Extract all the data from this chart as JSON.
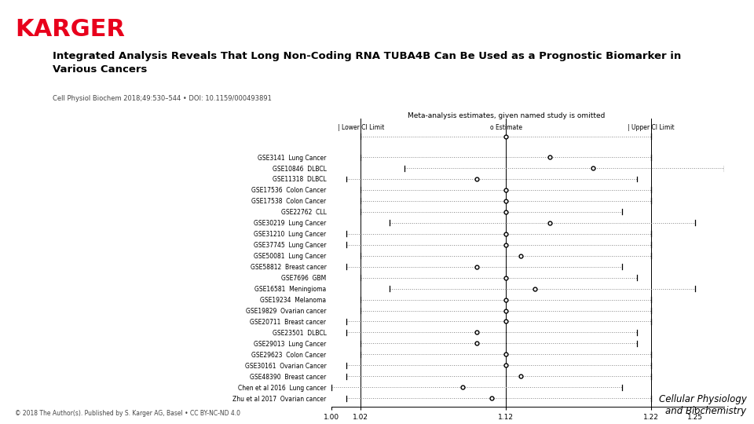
{
  "title": "Integrated Analysis Reveals That Long Non-Coding RNA TUBA4B Can Be Used as a Prognostic Biomarker in\nVarious Cancers",
  "subtitle": "Cell Physiol Biochem 2018;49:530–544 • DOI: 10.1159/000493891",
  "journal_label": "Cellular Physiology\nand Biochemistry",
  "karger_color": "#e8001c",
  "plot_title": "Meta-analysis estimates, given named study is omitted",
  "studies": [
    {
      "label": "GSE3141  Lung Cancer",
      "lower": 1.02,
      "est": 1.15,
      "upper": 1.22
    },
    {
      "label": "GSE10846  DLBCL",
      "lower": 1.05,
      "est": 1.18,
      "upper": 1.27
    },
    {
      "label": "GSE11318  DLBCL",
      "lower": 1.01,
      "est": 1.1,
      "upper": 1.21
    },
    {
      "label": "GSE17536  Colon Cancer",
      "lower": 1.02,
      "est": 1.12,
      "upper": 1.22
    },
    {
      "label": "GSE17538  Colon Cancer",
      "lower": 1.02,
      "est": 1.12,
      "upper": 1.22
    },
    {
      "label": "GSE22762  CLL",
      "lower": 1.02,
      "est": 1.12,
      "upper": 1.2
    },
    {
      "label": "GSE30219  Lung Cancer",
      "lower": 1.04,
      "est": 1.15,
      "upper": 1.25
    },
    {
      "label": "GSE31210  Lung Cancer",
      "lower": 1.01,
      "est": 1.12,
      "upper": 1.22
    },
    {
      "label": "GSE37745  Lung Cancer",
      "lower": 1.01,
      "est": 1.12,
      "upper": 1.22
    },
    {
      "label": "GSE50081  Lung Cancer",
      "lower": 1.02,
      "est": 1.13,
      "upper": 1.22
    },
    {
      "label": "GSE58812  Breast cancer",
      "lower": 1.01,
      "est": 1.1,
      "upper": 1.2
    },
    {
      "label": "GSE7696  GBM",
      "lower": 1.02,
      "est": 1.12,
      "upper": 1.21
    },
    {
      "label": "GSE16581  Meningioma",
      "lower": 1.04,
      "est": 1.14,
      "upper": 1.25
    },
    {
      "label": "GSE19234  Melanoma",
      "lower": 1.02,
      "est": 1.12,
      "upper": 1.22
    },
    {
      "label": "GSE19829  Ovarian cancer",
      "lower": 1.02,
      "est": 1.12,
      "upper": 1.22
    },
    {
      "label": "GSE20711  Breast cancer",
      "lower": 1.01,
      "est": 1.12,
      "upper": 1.22
    },
    {
      "label": "GSE23501  DLBCL",
      "lower": 1.01,
      "est": 1.1,
      "upper": 1.21
    },
    {
      "label": "GSE29013  Lung Cancer",
      "lower": 1.02,
      "est": 1.1,
      "upper": 1.21
    },
    {
      "label": "GSE29623  Colon Cancer",
      "lower": 1.02,
      "est": 1.12,
      "upper": 1.22
    },
    {
      "label": "GSE30161  Ovarian Cancer",
      "lower": 1.01,
      "est": 1.12,
      "upper": 1.22
    },
    {
      "label": "GSE48390  Breast cancer",
      "lower": 1.01,
      "est": 1.13,
      "upper": 1.22
    },
    {
      "label": "Chen et al 2016  Lung cancer",
      "lower": 1.0,
      "est": 1.09,
      "upper": 1.2
    },
    {
      "label": "Zhu et al 2017  Ovarian cancer",
      "lower": 1.01,
      "est": 1.11,
      "upper": 1.22
    }
  ],
  "xmin": 1.0,
  "xmax": 1.27,
  "xticks": [
    1.0,
    1.02,
    1.12,
    1.22,
    1.25
  ],
  "xtick_labels": [
    "1.00",
    "1.02",
    "1.12",
    "1.22",
    "1.25"
  ],
  "vline1": 1.02,
  "vline2": 1.12,
  "vline3": 1.22,
  "bg_color": "#ffffff",
  "text_color": "#000000",
  "ci_color": "#888888",
  "copyright": "© 2018 The Author(s). Published by S. Karger AG, Basel • CC BY-NC-ND 4.0"
}
